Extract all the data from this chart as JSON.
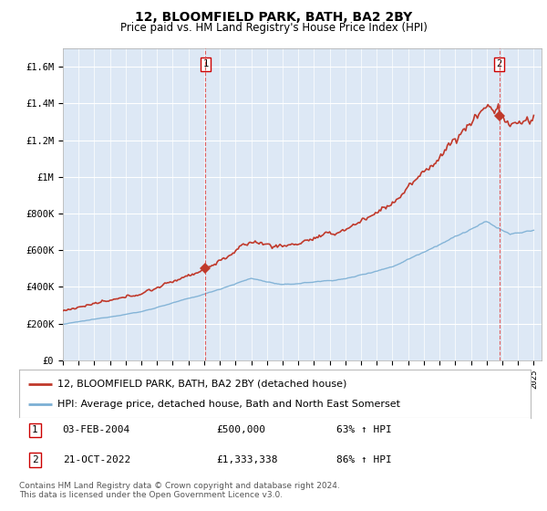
{
  "title": "12, BLOOMFIELD PARK, BATH, BA2 2BY",
  "subtitle": "Price paid vs. HM Land Registry's House Price Index (HPI)",
  "ylim": [
    0,
    1700000
  ],
  "yticks": [
    0,
    200000,
    400000,
    600000,
    800000,
    1000000,
    1200000,
    1400000,
    1600000
  ],
  "ytick_labels": [
    "£0",
    "£200K",
    "£400K",
    "£600K",
    "£800K",
    "£1M",
    "£1.2M",
    "£1.4M",
    "£1.6M"
  ],
  "sale1_date_num": 2004.09,
  "sale1_price": 500000,
  "sale2_date_num": 2022.81,
  "sale2_price": 1333338,
  "hpi_color": "#7bafd4",
  "price_color": "#c0392b",
  "dashed_color": "#e05050",
  "bg_color": "#dde8f5",
  "grid_color": "#ffffff",
  "legend_entry1": "12, BLOOMFIELD PARK, BATH, BA2 2BY (detached house)",
  "legend_entry2": "HPI: Average price, detached house, Bath and North East Somerset",
  "footer": "Contains HM Land Registry data © Crown copyright and database right 2024.\nThis data is licensed under the Open Government Licence v3.0.",
  "xmin": 1995.0,
  "xmax": 2025.5
}
